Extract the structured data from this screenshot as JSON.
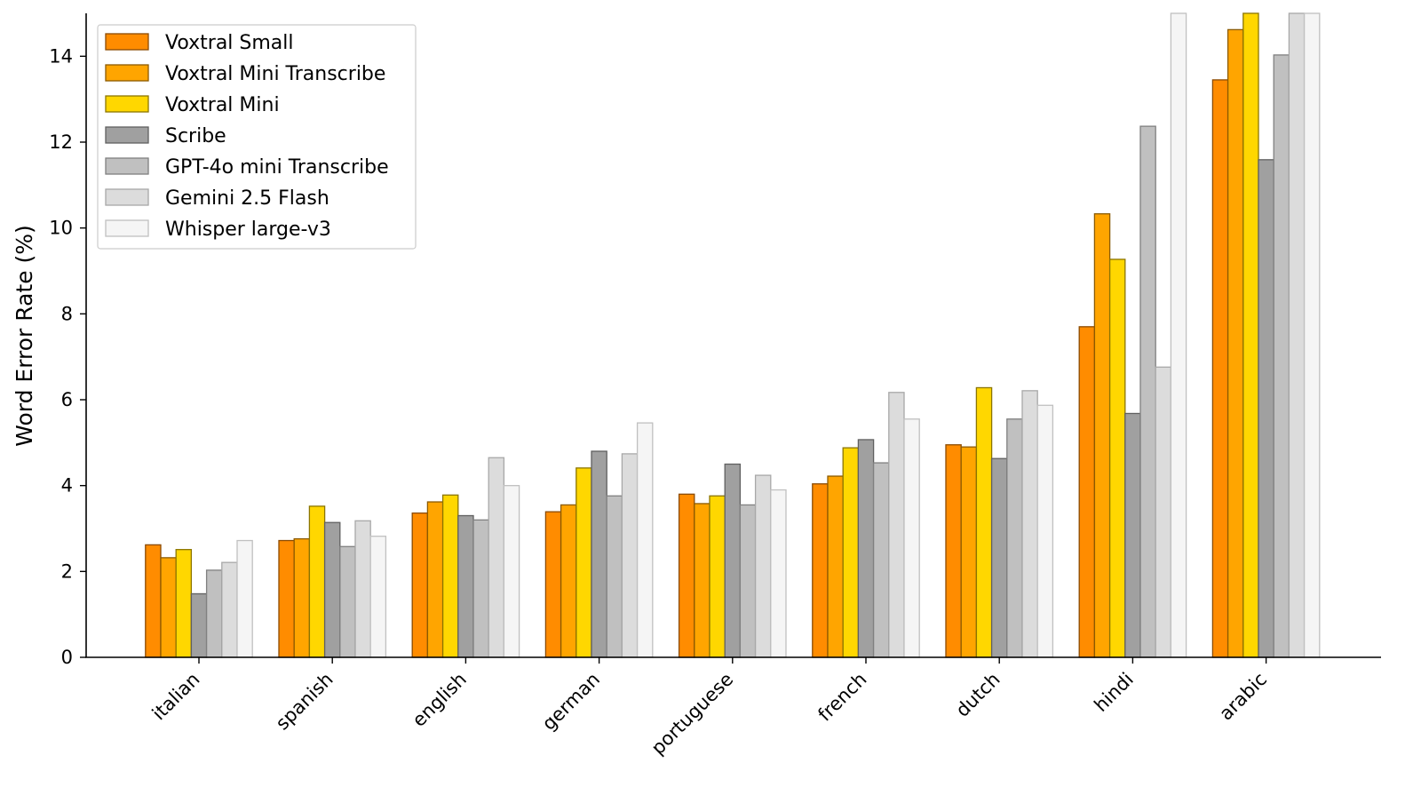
{
  "chart_data": {
    "type": "bar",
    "title": "",
    "xlabel": "",
    "ylabel": "Word Error Rate (%)",
    "ylim": [
      0,
      15
    ],
    "yticks": [
      0,
      2,
      4,
      6,
      8,
      10,
      12,
      14
    ],
    "grid": false,
    "legend_position": "top-left",
    "categories": [
      "italian",
      "spanish",
      "english",
      "german",
      "portuguese",
      "french",
      "dutch",
      "hindi",
      "arabic"
    ],
    "series": [
      {
        "name": "Voxtral Small",
        "color": "#FF8C00",
        "edge": "#8B4A00",
        "values": [
          2.62,
          2.72,
          3.36,
          3.39,
          3.8,
          4.04,
          4.95,
          7.7,
          13.45
        ]
      },
      {
        "name": "Voxtral Mini Transcribe",
        "color": "#FFA500",
        "edge": "#8B5A00",
        "values": [
          2.32,
          2.76,
          3.62,
          3.55,
          3.58,
          4.22,
          4.9,
          10.33,
          14.62
        ]
      },
      {
        "name": "Voxtral Mini",
        "color": "#FFD700",
        "edge": "#8B7500",
        "values": [
          2.51,
          3.52,
          3.78,
          4.41,
          3.76,
          4.88,
          6.28,
          9.27,
          15.3
        ]
      },
      {
        "name": "Scribe",
        "color": "#A0A0A0",
        "edge": "#606060",
        "values": [
          1.48,
          3.14,
          3.3,
          4.8,
          4.5,
          5.07,
          4.63,
          5.68,
          11.59
        ]
      },
      {
        "name": "GPT-4o mini Transcribe",
        "color": "#C0C0C0",
        "edge": "#808080",
        "values": [
          2.03,
          2.58,
          3.2,
          3.76,
          3.55,
          4.53,
          5.55,
          12.37,
          14.03
        ]
      },
      {
        "name": "Gemini 2.5 Flash",
        "color": "#DCDCDC",
        "edge": "#A8A8A8",
        "values": [
          2.21,
          3.18,
          4.65,
          4.74,
          4.24,
          6.17,
          6.21,
          6.76,
          15.5
        ]
      },
      {
        "name": "Whisper large-v3",
        "color": "#F5F5F5",
        "edge": "#C0C0C0",
        "values": [
          2.72,
          2.82,
          4.0,
          5.46,
          3.9,
          5.55,
          5.87,
          16.0,
          16.0
        ]
      }
    ]
  }
}
